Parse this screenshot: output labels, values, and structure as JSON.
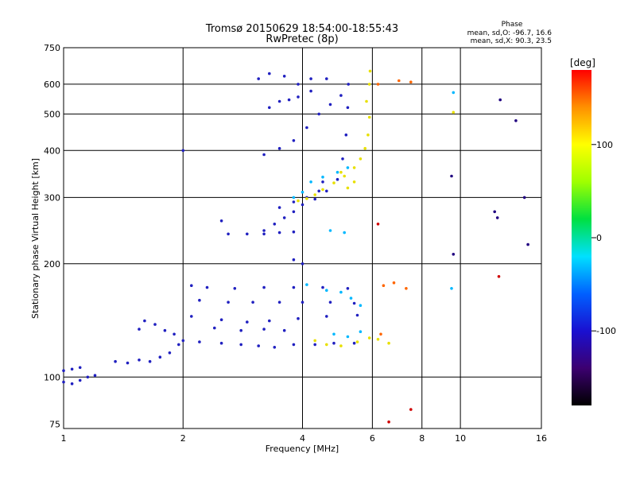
{
  "chart_data": {
    "type": "scatter",
    "title": "Tromsø 20150629 18:54:00-18:55:43",
    "subtitle": "RwPretec (8p)",
    "xlabel": "Frequency [MHz]",
    "ylabel": "Stationary phase Virtual Height [km]",
    "x_scale": "log2",
    "y_scale": "log",
    "xlim": [
      1,
      16
    ],
    "ylim": [
      73,
      750
    ],
    "x_ticks": [
      1,
      2,
      4,
      6,
      8,
      10,
      16
    ],
    "y_ticks": [
      75,
      100,
      200,
      300,
      400,
      500,
      600,
      750
    ],
    "grid": true,
    "phase_stats": {
      "title": "Phase",
      "line_o": "mean, sd,O: -96.7, 16.6",
      "line_x": "mean, sd,X:  90.3, 23.5"
    },
    "colorbar": {
      "label": "[deg]",
      "ticks": [
        100,
        0,
        -100
      ],
      "range": [
        -180,
        180
      ],
      "colors": [
        "#000000",
        "#3c0070",
        "#1a10d0",
        "#0060ff",
        "#00e0ff",
        "#00e040",
        "#a0ff00",
        "#ffff00",
        "#ff9000",
        "#ff0000"
      ]
    },
    "series": [
      {
        "color": "#2020c0",
        "points": [
          [
            1.0,
            97
          ],
          [
            1.05,
            96
          ],
          [
            1.1,
            98
          ],
          [
            1.15,
            100
          ],
          [
            1.2,
            101
          ],
          [
            1.0,
            104
          ],
          [
            1.05,
            105
          ],
          [
            1.1,
            106
          ],
          [
            1.35,
            110
          ],
          [
            1.45,
            109
          ],
          [
            1.55,
            111
          ],
          [
            1.65,
            110
          ],
          [
            1.75,
            113
          ],
          [
            1.85,
            116
          ],
          [
            1.95,
            122
          ],
          [
            1.55,
            134
          ],
          [
            1.6,
            141
          ],
          [
            1.7,
            138
          ],
          [
            1.8,
            133
          ],
          [
            1.9,
            130
          ],
          [
            2.0,
            125
          ],
          [
            2.2,
            124
          ],
          [
            2.5,
            123
          ],
          [
            2.8,
            122
          ],
          [
            3.1,
            121
          ],
          [
            3.4,
            120
          ],
          [
            3.8,
            122
          ],
          [
            4.3,
            122
          ],
          [
            4.8,
            123
          ],
          [
            5.4,
            123
          ],
          [
            2.1,
            175
          ],
          [
            2.3,
            173
          ],
          [
            2.7,
            172
          ],
          [
            3.2,
            173
          ],
          [
            3.8,
            173
          ],
          [
            4.5,
            173
          ],
          [
            5.2,
            172
          ],
          [
            2.2,
            160
          ],
          [
            2.6,
            158
          ],
          [
            3.0,
            158
          ],
          [
            3.5,
            158
          ],
          [
            4.0,
            158
          ],
          [
            4.7,
            158
          ],
          [
            5.4,
            157
          ],
          [
            2.1,
            145
          ],
          [
            2.5,
            142
          ],
          [
            2.9,
            140
          ],
          [
            3.3,
            141
          ],
          [
            3.9,
            143
          ],
          [
            4.6,
            145
          ],
          [
            5.5,
            146
          ],
          [
            2.4,
            135
          ],
          [
            2.8,
            133
          ],
          [
            3.2,
            134
          ],
          [
            3.6,
            133
          ],
          [
            2.6,
            240
          ],
          [
            2.9,
            240
          ],
          [
            3.2,
            240
          ],
          [
            3.5,
            242
          ],
          [
            3.8,
            243
          ],
          [
            3.2,
            245
          ],
          [
            3.4,
            255
          ],
          [
            3.6,
            265
          ],
          [
            3.8,
            275
          ],
          [
            4.0,
            287
          ],
          [
            4.3,
            297
          ],
          [
            4.6,
            312
          ],
          [
            4.9,
            335
          ],
          [
            5.05,
            380
          ],
          [
            5.15,
            440
          ],
          [
            5.2,
            520
          ],
          [
            5.22,
            600
          ],
          [
            3.5,
            282
          ],
          [
            3.8,
            292
          ],
          [
            4.1,
            300
          ],
          [
            4.4,
            312
          ],
          [
            3.2,
            390
          ],
          [
            3.5,
            405
          ],
          [
            3.8,
            425
          ],
          [
            4.1,
            460
          ],
          [
            4.4,
            500
          ],
          [
            4.7,
            530
          ],
          [
            5.0,
            560
          ],
          [
            3.3,
            520
          ],
          [
            3.5,
            540
          ],
          [
            3.7,
            545
          ],
          [
            3.9,
            555
          ],
          [
            4.2,
            575
          ],
          [
            4.6,
            620
          ],
          [
            3.1,
            620
          ],
          [
            3.3,
            640
          ],
          [
            3.6,
            630
          ],
          [
            3.9,
            600
          ],
          [
            4.2,
            620
          ],
          [
            2.5,
            260
          ],
          [
            2.0,
            400
          ],
          [
            4.5,
            330
          ],
          [
            3.8,
            205
          ],
          [
            4.0,
            200
          ]
        ]
      },
      {
        "color": "#00b8ff",
        "points": [
          [
            3.8,
            300
          ],
          [
            4.0,
            310
          ],
          [
            4.2,
            330
          ],
          [
            4.5,
            340
          ],
          [
            4.9,
            350
          ],
          [
            5.2,
            360
          ],
          [
            4.1,
            176
          ],
          [
            4.6,
            170
          ],
          [
            5.0,
            168
          ],
          [
            5.3,
            162
          ],
          [
            5.6,
            155
          ],
          [
            4.8,
            130
          ],
          [
            5.2,
            128
          ],
          [
            5.6,
            132
          ],
          [
            4.7,
            245
          ],
          [
            5.1,
            242
          ],
          [
            9.6,
            570
          ],
          [
            9.5,
            172
          ]
        ]
      },
      {
        "color": "#e8e000",
        "points": [
          [
            3.9,
            294
          ],
          [
            4.1,
            298
          ],
          [
            4.3,
            305
          ],
          [
            4.5,
            315
          ],
          [
            4.8,
            328
          ],
          [
            5.1,
            342
          ],
          [
            5.4,
            360
          ],
          [
            5.6,
            380
          ],
          [
            5.75,
            405
          ],
          [
            5.85,
            440
          ],
          [
            5.9,
            490
          ],
          [
            5.8,
            540
          ],
          [
            5.9,
            600
          ],
          [
            5.92,
            650
          ],
          [
            4.3,
            125
          ],
          [
            4.6,
            122
          ],
          [
            5.0,
            121
          ],
          [
            5.5,
            124
          ],
          [
            5.9,
            127
          ],
          [
            6.2,
            126
          ],
          [
            6.6,
            123
          ],
          [
            5.0,
            350
          ],
          [
            5.2,
            318
          ],
          [
            5.4,
            330
          ],
          [
            9.6,
            505
          ]
        ]
      },
      {
        "color": "#ff6600",
        "points": [
          [
            6.4,
            175
          ],
          [
            6.8,
            178
          ],
          [
            7.3,
            172
          ],
          [
            6.2,
            600
          ],
          [
            7.0,
            613
          ],
          [
            7.5,
            608
          ],
          [
            6.3,
            130
          ]
        ]
      },
      {
        "color": "#d00000",
        "points": [
          [
            7.5,
            82
          ],
          [
            12.5,
            185
          ],
          [
            6.6,
            76
          ],
          [
            6.2,
            255
          ]
        ]
      },
      {
        "color": "#200080",
        "points": [
          [
            9.5,
            342
          ],
          [
            9.6,
            212
          ],
          [
            12.2,
            275
          ],
          [
            12.4,
            265
          ],
          [
            12.6,
            545
          ],
          [
            13.8,
            480
          ],
          [
            14.5,
            300
          ],
          [
            14.8,
            225
          ]
        ]
      }
    ]
  }
}
